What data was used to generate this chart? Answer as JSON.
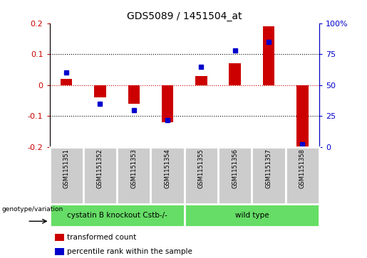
{
  "title": "GDS5089 / 1451504_at",
  "samples": [
    "GSM1151351",
    "GSM1151352",
    "GSM1151353",
    "GSM1151354",
    "GSM1151355",
    "GSM1151356",
    "GSM1151357",
    "GSM1151358"
  ],
  "red_values": [
    0.02,
    -0.04,
    -0.06,
    -0.12,
    0.03,
    0.07,
    0.19,
    -0.22
  ],
  "blue_values": [
    60,
    35,
    30,
    22,
    65,
    78,
    85,
    2
  ],
  "ylim_left": [
    -0.2,
    0.2
  ],
  "ylim_right": [
    0,
    100
  ],
  "yticks_left": [
    -0.2,
    -0.1,
    0.0,
    0.1,
    0.2
  ],
  "yticks_right": [
    0,
    25,
    50,
    75,
    100
  ],
  "ytick_labels_left": [
    "-0.2",
    "-0.1",
    "0",
    "0.1",
    "0.2"
  ],
  "ytick_labels_right": [
    "0",
    "25",
    "50",
    "75",
    "100%"
  ],
  "red_color": "#cc0000",
  "blue_color": "#0000cc",
  "dotted_line_color": "#000000",
  "zero_line_color": "#cc0000",
  "group1_label": "cystatin B knockout Cstb-/-",
  "group2_label": "wild type",
  "group1_count": 4,
  "group2_count": 4,
  "group_bg_color": "#66dd66",
  "xticklabel_area_color": "#cccccc",
  "legend_red_label": "transformed count",
  "legend_blue_label": "percentile rank within the sample",
  "genotype_label": "genotype/variation",
  "plot_bg_color": "#ffffff",
  "bar_width": 0.35,
  "blue_marker_size": 5,
  "title_fontsize": 10
}
